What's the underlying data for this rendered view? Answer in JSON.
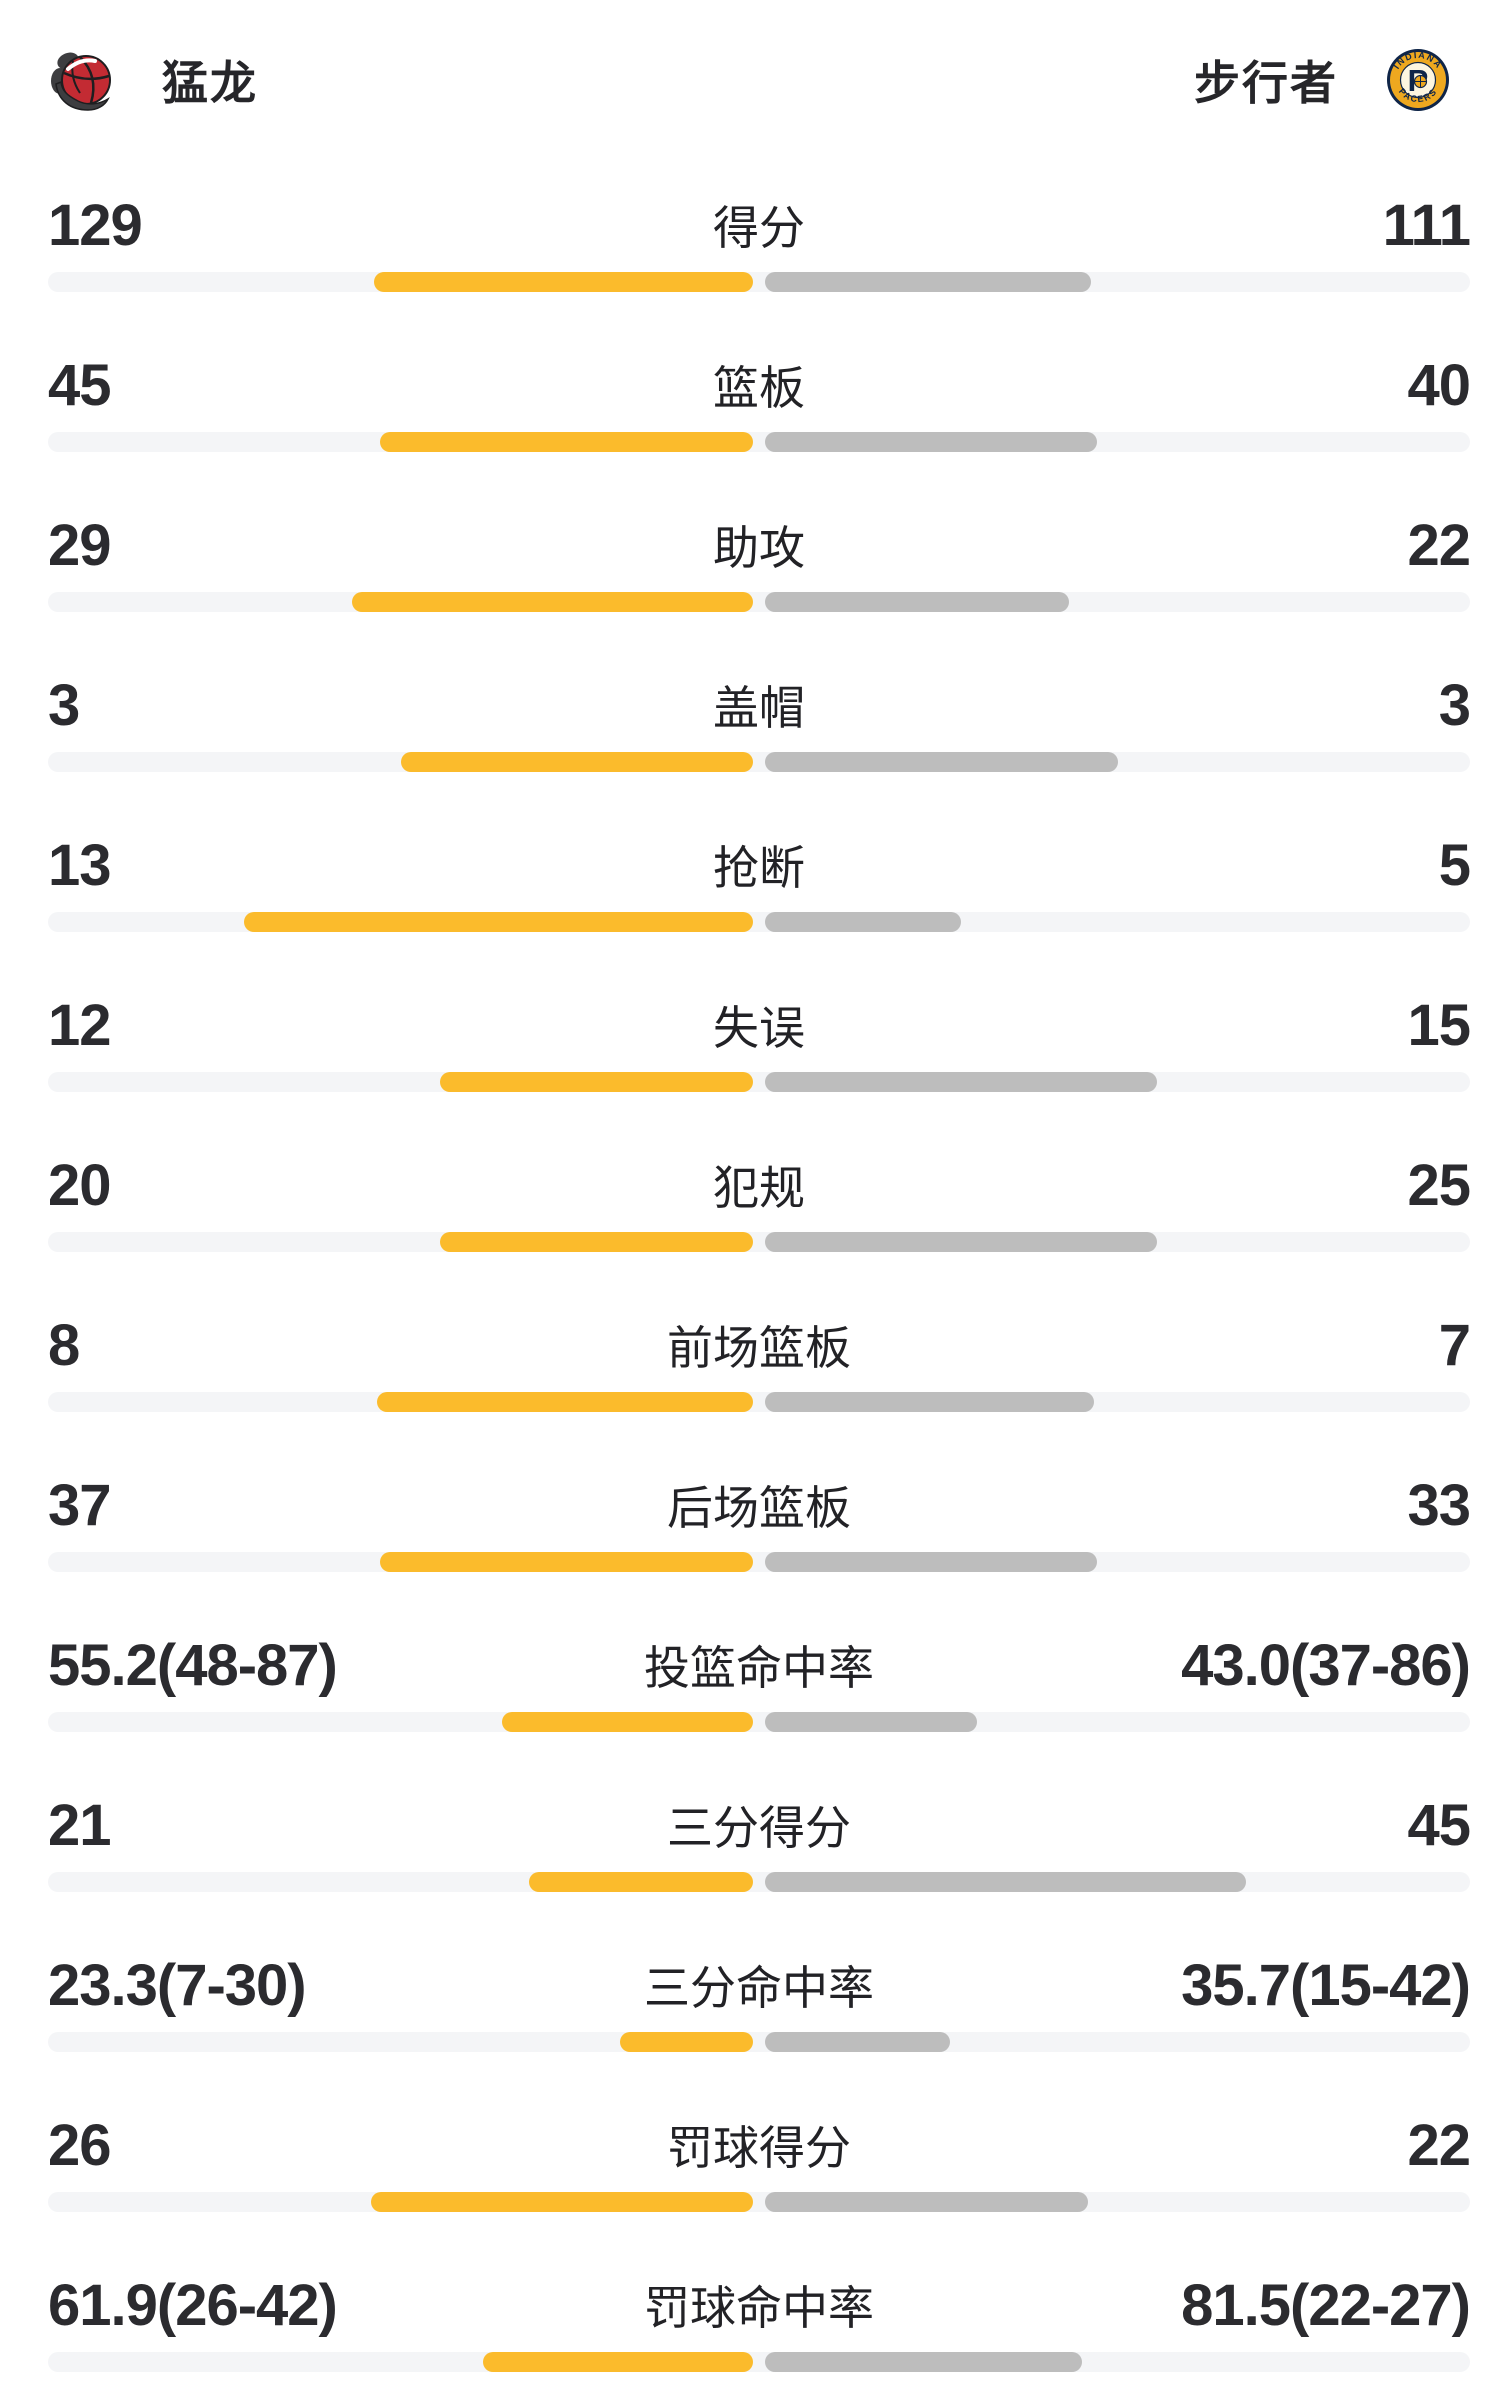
{
  "header": {
    "left_team": {
      "name": "猛龙"
    },
    "right_team": {
      "name": "步行者"
    }
  },
  "colors": {
    "left_bar": "#fbbb2c",
    "right_bar": "#bdbdbd",
    "track": "#f4f5f7",
    "value_text": "#2b2b2f",
    "raptors_red": "#c32b33",
    "raptors_claw": "#3d3d40",
    "pacers_navy": "#0f2548",
    "pacers_gold": "#eea81f",
    "pacers_cream": "#fdf6e0"
  },
  "stats": {
    "rows": [
      {
        "label": "得分",
        "left": "129",
        "right": "111",
        "left_value": 129,
        "right_value": 111,
        "kind": "count"
      },
      {
        "label": "篮板",
        "left": "45",
        "right": "40",
        "left_value": 45,
        "right_value": 40,
        "kind": "count"
      },
      {
        "label": "助攻",
        "left": "29",
        "right": "22",
        "left_value": 29,
        "right_value": 22,
        "kind": "count"
      },
      {
        "label": "盖帽",
        "left": "3",
        "right": "3",
        "left_value": 3,
        "right_value": 3,
        "kind": "count"
      },
      {
        "label": "抢断",
        "left": "13",
        "right": "5",
        "left_value": 13,
        "right_value": 5,
        "kind": "count"
      },
      {
        "label": "失误",
        "left": "12",
        "right": "15",
        "left_value": 12,
        "right_value": 15,
        "kind": "count"
      },
      {
        "label": "犯规",
        "left": "20",
        "right": "25",
        "left_value": 20,
        "right_value": 25,
        "kind": "count"
      },
      {
        "label": "前场篮板",
        "left": "8",
        "right": "7",
        "left_value": 8,
        "right_value": 7,
        "kind": "count"
      },
      {
        "label": "后场篮板",
        "left": "37",
        "right": "33",
        "left_value": 37,
        "right_value": 33,
        "kind": "count"
      },
      {
        "label": "投篮命中率",
        "left": "55.2(48-87)",
        "right": "43.0(37-86)",
        "left_value": 55.2,
        "right_value": 43.0,
        "kind": "percent"
      },
      {
        "label": "三分得分",
        "left": "21",
        "right": "45",
        "left_value": 21,
        "right_value": 45,
        "kind": "count"
      },
      {
        "label": "三分命中率",
        "left": "23.3(7-30)",
        "right": "35.7(15-42)",
        "left_value": 23.3,
        "right_value": 35.7,
        "kind": "percent"
      },
      {
        "label": "罚球得分",
        "left": "26",
        "right": "22",
        "left_value": 26,
        "right_value": 22,
        "kind": "count"
      },
      {
        "label": "罚球命中率",
        "left": "61.9(26-42)",
        "right": "81.5(22-27)",
        "left_value": 61.9,
        "right_value": 81.5,
        "kind": "percent"
      }
    ]
  },
  "chart_data": {
    "type": "bar",
    "title": "猛龙 vs 步行者 球队数据对比",
    "categories": [
      "得分",
      "篮板",
      "助攻",
      "盖帽",
      "抢断",
      "失误",
      "犯规",
      "前场篮板",
      "后场篮板",
      "投篮命中率",
      "三分得分",
      "三分命中率",
      "罚球得分",
      "罚球命中率"
    ],
    "series": [
      {
        "name": "猛龙",
        "values": [
          129,
          45,
          29,
          3,
          13,
          12,
          20,
          8,
          37,
          55.2,
          21,
          23.3,
          26,
          61.9
        ],
        "display": [
          "129",
          "45",
          "29",
          "3",
          "13",
          "12",
          "20",
          "8",
          "37",
          "55.2(48-87)",
          "21",
          "23.3(7-30)",
          "26",
          "61.9(26-42)"
        ],
        "color": "#fbbb2c"
      },
      {
        "name": "步行者",
        "values": [
          111,
          40,
          22,
          3,
          5,
          15,
          25,
          7,
          33,
          43.0,
          45,
          35.7,
          22,
          81.5
        ],
        "display": [
          "111",
          "40",
          "22",
          "3",
          "5",
          "15",
          "25",
          "7",
          "33",
          "43.0(37-86)",
          "45",
          "35.7(15-42)",
          "22",
          "81.5(22-27)"
        ],
        "color": "#bdbdbd"
      }
    ],
    "layout": {
      "orientation": "horizontal-mirrored",
      "labels_position": "center",
      "bar_length_rule": "count: value/(left+right) of half-track; percent: value/(value+100) of half-track",
      "grid": false,
      "legend": "team headers with logos at top"
    }
  }
}
